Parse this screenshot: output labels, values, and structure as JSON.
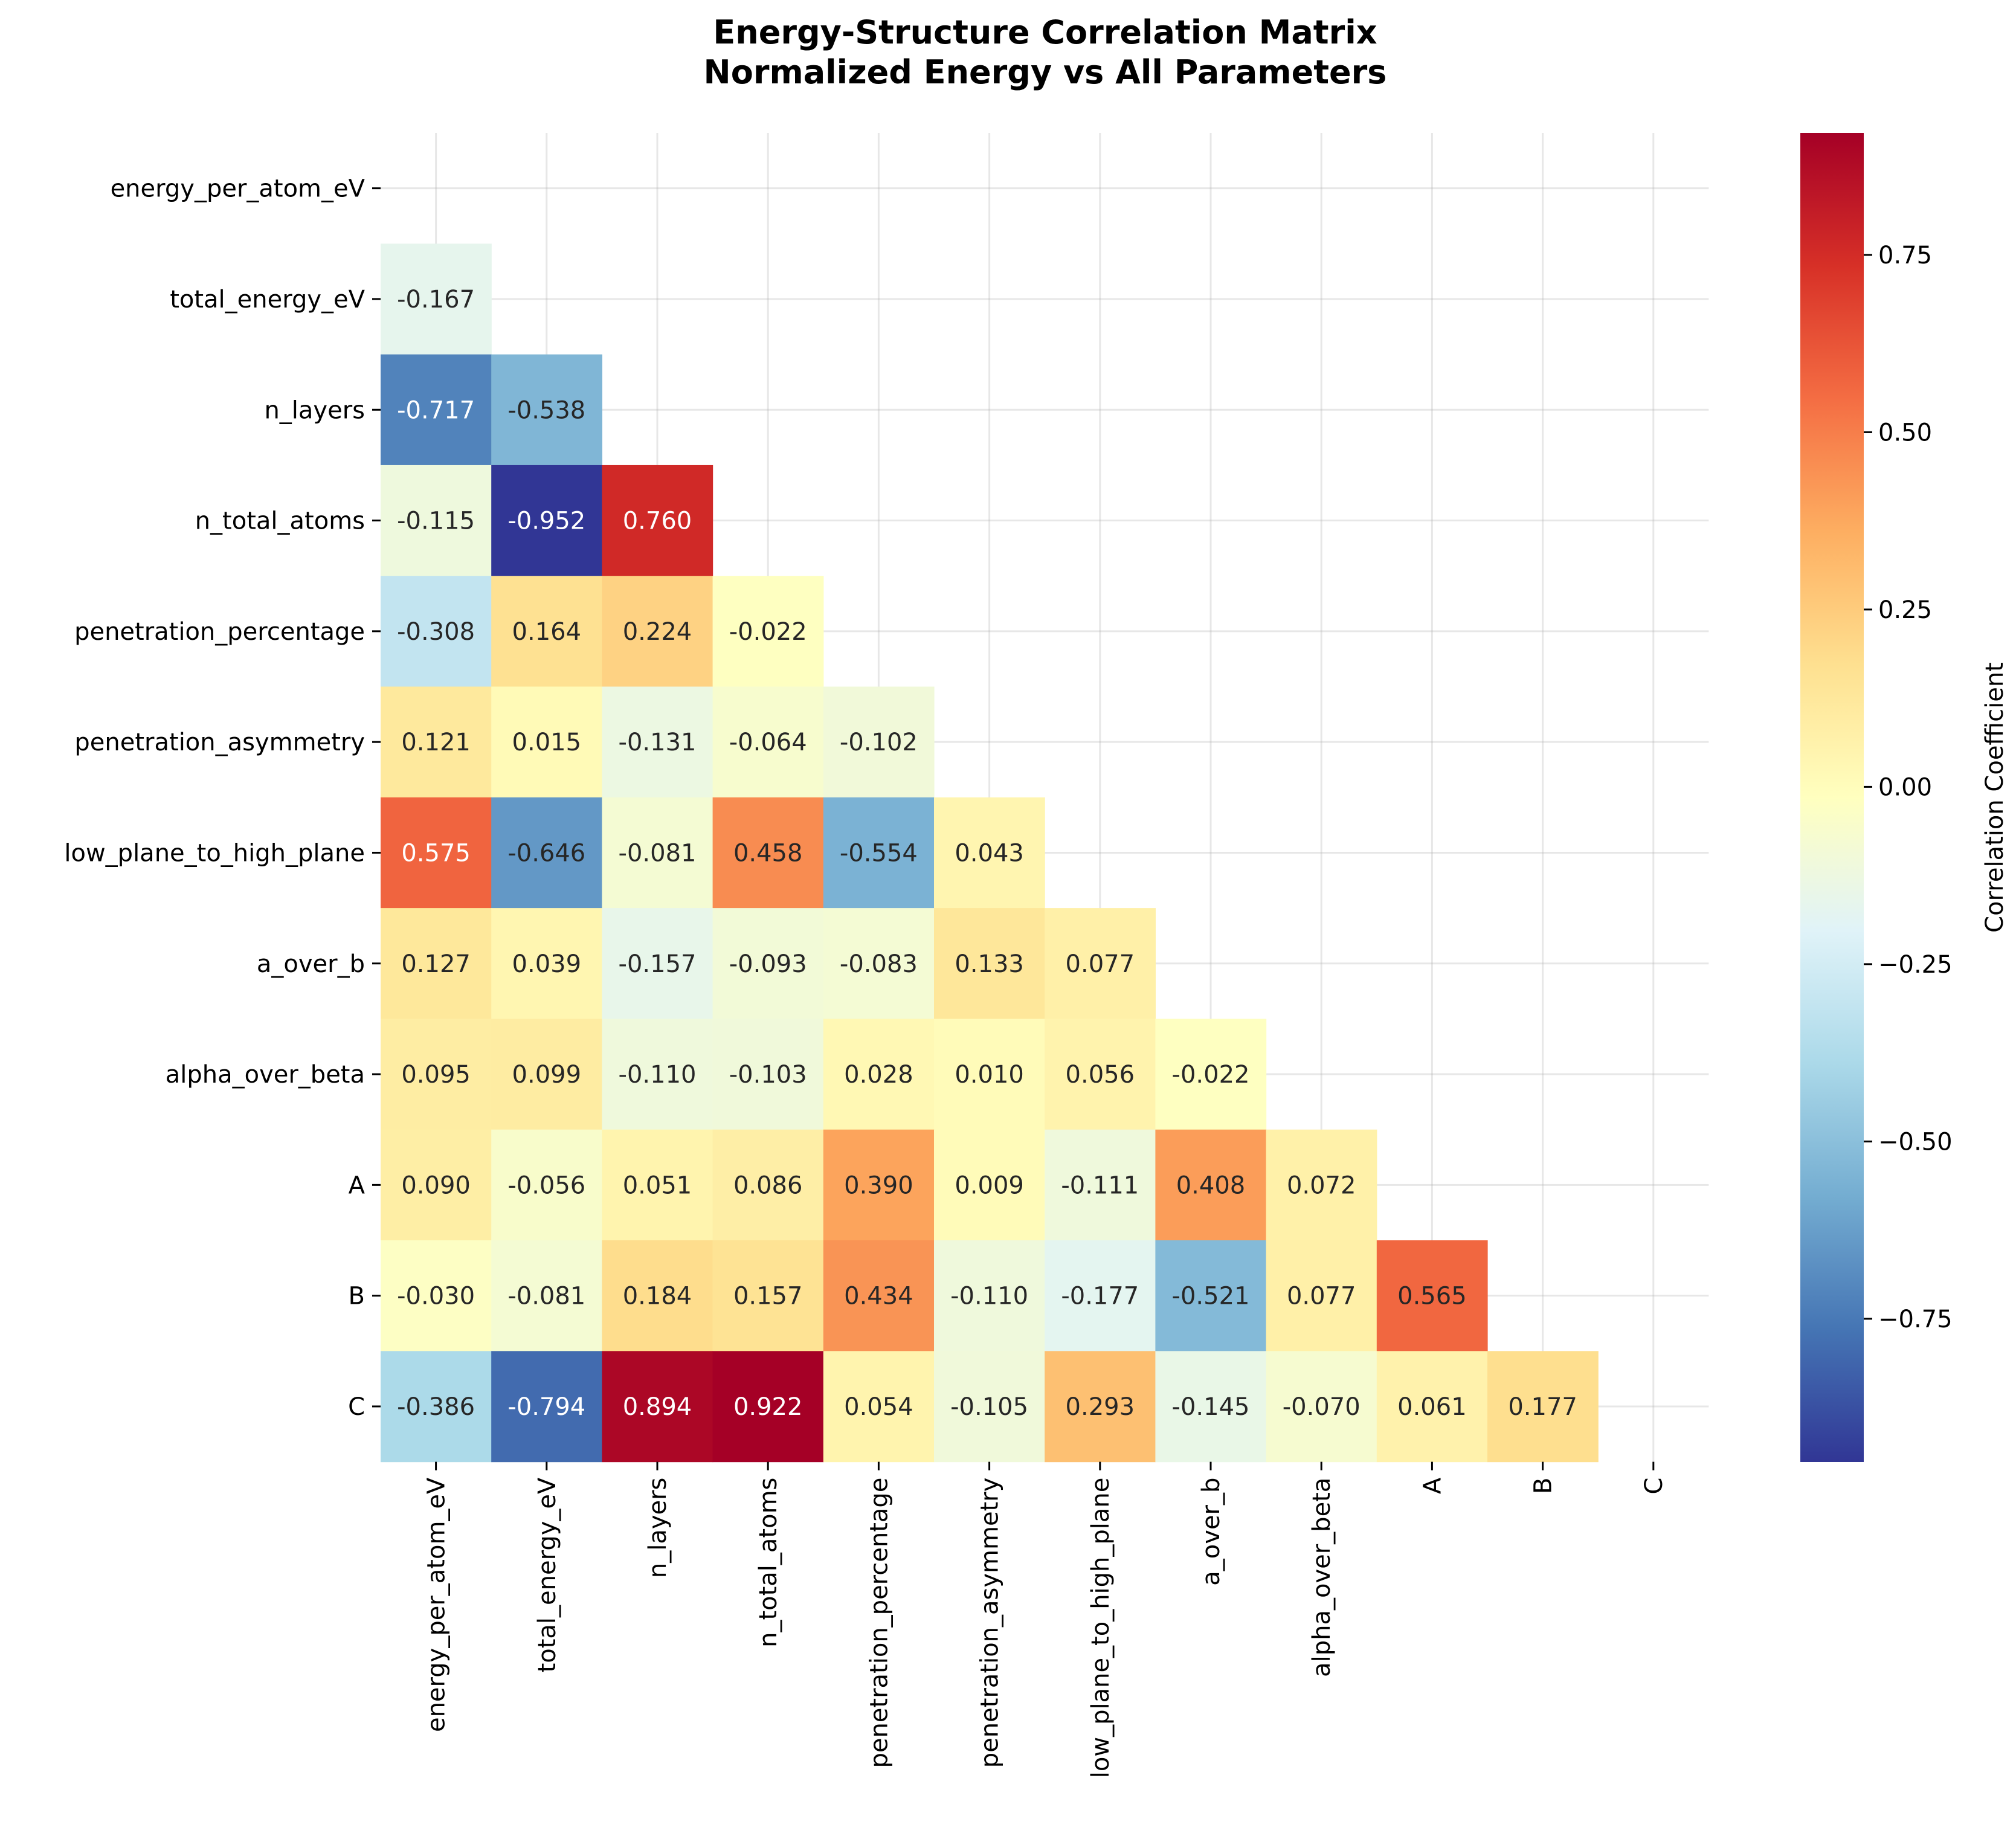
{
  "chart_data": {
    "type": "heatmap",
    "title": "Energy-Structure Correlation Matrix",
    "subtitle": "Normalized Energy vs All Parameters",
    "variables": [
      "energy_per_atom_eV",
      "total_energy_eV",
      "n_layers",
      "n_total_atoms",
      "penetration_percentage",
      "penetration_asymmetry",
      "low_plane_to_high_plane",
      "a_over_b",
      "alpha_over_beta",
      "A",
      "B",
      "C"
    ],
    "mask": "upper triangle including diagonal",
    "matrix_lower": [
      [],
      [
        -0.167
      ],
      [
        -0.717,
        -0.538
      ],
      [
        -0.115,
        -0.952,
        0.76
      ],
      [
        -0.308,
        0.164,
        0.224,
        -0.022
      ],
      [
        0.121,
        0.015,
        -0.131,
        -0.064,
        -0.102
      ],
      [
        0.575,
        -0.646,
        -0.081,
        0.458,
        -0.554,
        0.043
      ],
      [
        0.127,
        0.039,
        -0.157,
        -0.093,
        -0.083,
        0.133,
        0.077
      ],
      [
        0.095,
        0.099,
        -0.11,
        -0.103,
        0.028,
        0.01,
        0.056,
        -0.022
      ],
      [
        0.09,
        -0.056,
        0.051,
        0.086,
        0.39,
        0.009,
        -0.111,
        0.408,
        0.072
      ],
      [
        -0.03,
        -0.081,
        0.184,
        0.157,
        0.434,
        -0.11,
        -0.177,
        -0.521,
        0.077,
        0.565
      ],
      [
        -0.386,
        -0.794,
        0.894,
        0.922,
        0.054,
        -0.105,
        0.293,
        -0.145,
        -0.07,
        0.061,
        0.177
      ]
    ],
    "colormap": "RdYlBu_r",
    "vmin": -0.952,
    "vmax": 0.922,
    "colorbar": {
      "label": "Correlation Coefficient",
      "ticks": [
        -0.75,
        -0.5,
        -0.25,
        0.0,
        0.25,
        0.5,
        0.75
      ],
      "tick_labels": [
        "−0.75",
        "−0.50",
        "−0.25",
        "0.00",
        "0.25",
        "0.50",
        "0.75"
      ]
    },
    "grid": true,
    "annotation_format": "3 decimals"
  }
}
